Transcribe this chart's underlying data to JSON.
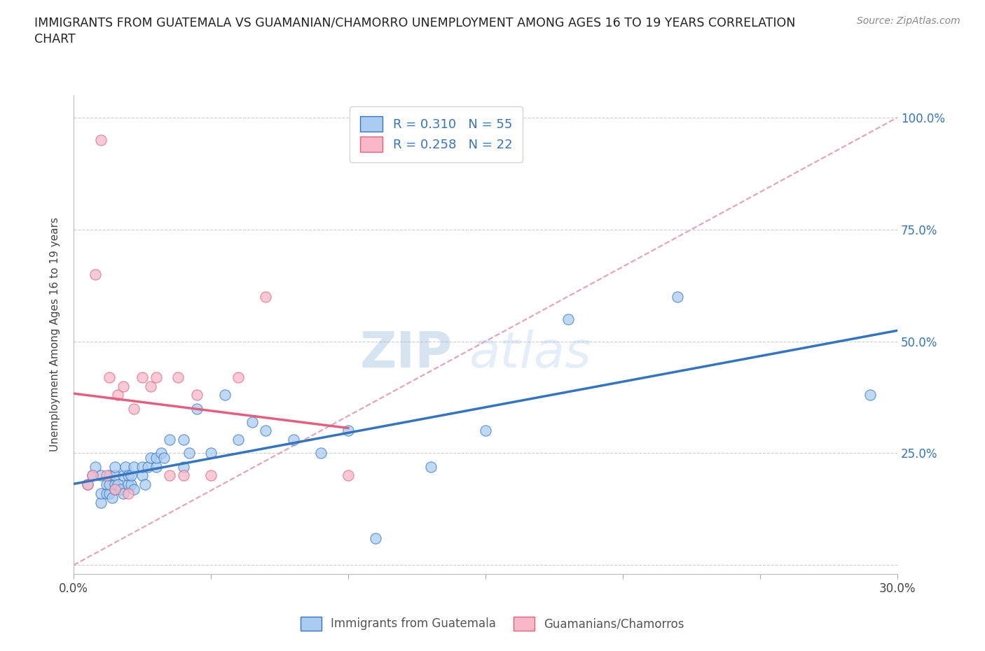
{
  "title": "IMMIGRANTS FROM GUATEMALA VS GUAMANIAN/CHAMORRO UNEMPLOYMENT AMONG AGES 16 TO 19 YEARS CORRELATION\nCHART",
  "source": "Source: ZipAtlas.com",
  "ylabel": "Unemployment Among Ages 16 to 19 years",
  "xlim": [
    0.0,
    0.3
  ],
  "ylim": [
    -0.02,
    1.05
  ],
  "xticks": [
    0.0,
    0.05,
    0.1,
    0.15,
    0.2,
    0.25,
    0.3
  ],
  "xticklabels": [
    "0.0%",
    "",
    "",
    "",
    "",
    "",
    "30.0%"
  ],
  "yticks": [
    0.0,
    0.25,
    0.5,
    0.75,
    1.0
  ],
  "yticklabels": [
    "",
    "25.0%",
    "50.0%",
    "75.0%",
    "100.0%"
  ],
  "R_blue": 0.31,
  "N_blue": 55,
  "R_pink": 0.258,
  "N_pink": 22,
  "blue_color": "#aaccf0",
  "blue_line_color": "#3575c0",
  "pink_color": "#f8b8c8",
  "pink_line_color": "#e06080",
  "dashed_line_color": "#e8a0b0",
  "legend_label_blue": "Immigrants from Guatemala",
  "legend_label_pink": "Guamanians/Chamorros",
  "blue_scatter_x": [
    0.005,
    0.007,
    0.008,
    0.01,
    0.01,
    0.01,
    0.012,
    0.012,
    0.013,
    0.013,
    0.013,
    0.014,
    0.015,
    0.015,
    0.015,
    0.015,
    0.016,
    0.017,
    0.018,
    0.018,
    0.019,
    0.02,
    0.02,
    0.021,
    0.021,
    0.022,
    0.022,
    0.025,
    0.025,
    0.026,
    0.027,
    0.028,
    0.03,
    0.03,
    0.032,
    0.033,
    0.035,
    0.04,
    0.04,
    0.042,
    0.045,
    0.05,
    0.055,
    0.06,
    0.065,
    0.07,
    0.08,
    0.09,
    0.1,
    0.11,
    0.13,
    0.15,
    0.18,
    0.22,
    0.29
  ],
  "blue_scatter_y": [
    0.18,
    0.2,
    0.22,
    0.14,
    0.16,
    0.2,
    0.16,
    0.18,
    0.16,
    0.18,
    0.2,
    0.15,
    0.17,
    0.18,
    0.2,
    0.22,
    0.18,
    0.17,
    0.16,
    0.2,
    0.22,
    0.18,
    0.2,
    0.18,
    0.2,
    0.17,
    0.22,
    0.2,
    0.22,
    0.18,
    0.22,
    0.24,
    0.22,
    0.24,
    0.25,
    0.24,
    0.28,
    0.22,
    0.28,
    0.25,
    0.35,
    0.25,
    0.38,
    0.28,
    0.32,
    0.3,
    0.28,
    0.25,
    0.3,
    0.06,
    0.22,
    0.3,
    0.55,
    0.6,
    0.38
  ],
  "pink_scatter_x": [
    0.005,
    0.007,
    0.008,
    0.01,
    0.012,
    0.013,
    0.015,
    0.016,
    0.018,
    0.02,
    0.022,
    0.025,
    0.028,
    0.03,
    0.035,
    0.038,
    0.04,
    0.045,
    0.05,
    0.06,
    0.07,
    0.1
  ],
  "pink_scatter_y": [
    0.18,
    0.2,
    0.65,
    0.95,
    0.2,
    0.42,
    0.17,
    0.38,
    0.4,
    0.16,
    0.35,
    0.42,
    0.4,
    0.42,
    0.2,
    0.42,
    0.2,
    0.38,
    0.2,
    0.42,
    0.6,
    0.2
  ],
  "background_color": "#ffffff",
  "watermark_zip": "ZIP",
  "watermark_atlas": "atlas"
}
